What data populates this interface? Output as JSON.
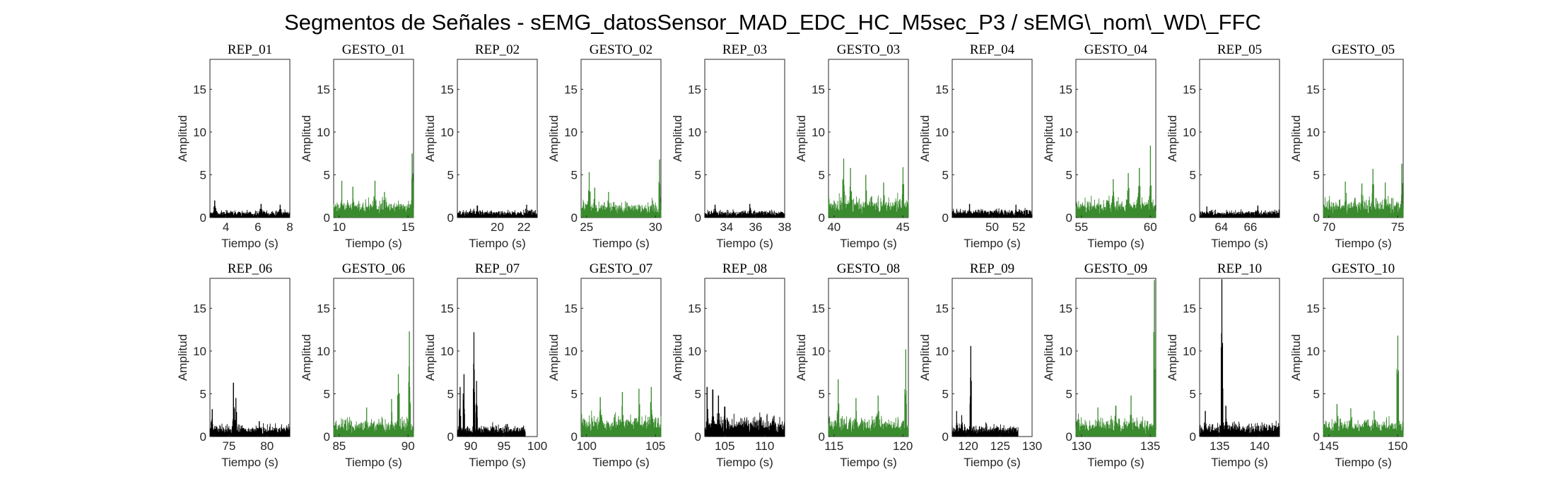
{
  "figure": {
    "title": "Segmentos de Señales - sEMG_datosSensor_MAD_EDC_HC_M5sec_P3 / sEMG\\_nom\\_WD\\_FFC",
    "ylabel": "Amplitud",
    "xlabel": "Tiempo (s)"
  },
  "colors": {
    "rep": "#000000",
    "gesto": "#3a8a2e"
  },
  "chart_data": [
    {
      "type": "line",
      "title": "REP_01",
      "kind": "rep",
      "xlim": [
        3,
        8
      ],
      "ylim": [
        0,
        18.5
      ],
      "xticks": [
        4,
        6,
        8
      ],
      "yticks": [
        0,
        5,
        10,
        15
      ],
      "xlabel": "Tiempo (s)",
      "ylabel": "Amplitud",
      "signal": {
        "base": 0.55,
        "noise": 0.45,
        "spikes": [
          [
            3.3,
            2.0
          ],
          [
            6.2,
            1.6
          ],
          [
            7.4,
            1.5
          ]
        ],
        "tail": 0
      }
    },
    {
      "type": "line",
      "title": "GESTO_01",
      "kind": "gesto",
      "xlim": [
        9.6,
        15.4
      ],
      "ylim": [
        0,
        18.5
      ],
      "xticks": [
        10,
        15
      ],
      "yticks": [
        0,
        5,
        10,
        15
      ],
      "xlabel": "Tiempo (s)",
      "ylabel": "Amplitud",
      "signal": {
        "base": 1.3,
        "noise": 1.4,
        "spikes": [
          [
            10.2,
            4.3
          ],
          [
            11.0,
            3.6
          ],
          [
            12.6,
            4.3
          ],
          [
            13.3,
            3.0
          ],
          [
            15.3,
            7.5
          ]
        ],
        "tail": 0
      }
    },
    {
      "type": "line",
      "title": "REP_02",
      "kind": "rep",
      "xlim": [
        17,
        23
      ],
      "ylim": [
        0,
        18.5
      ],
      "xticks": [
        20,
        22
      ],
      "yticks": [
        0,
        5,
        10,
        15
      ],
      "xlabel": "Tiempo (s)",
      "ylabel": "Amplitud",
      "signal": {
        "base": 0.6,
        "noise": 0.5,
        "spikes": [
          [
            18.5,
            1.4
          ],
          [
            22.2,
            1.5
          ]
        ],
        "tail": 0
      }
    },
    {
      "type": "line",
      "title": "GESTO_02",
      "kind": "gesto",
      "xlim": [
        24.6,
        30.4
      ],
      "ylim": [
        0,
        18.5
      ],
      "xticks": [
        25,
        30
      ],
      "yticks": [
        0,
        5,
        10,
        15
      ],
      "xlabel": "Tiempo (s)",
      "ylabel": "Amplitud",
      "signal": {
        "base": 1.2,
        "noise": 1.2,
        "spikes": [
          [
            25.2,
            5.3
          ],
          [
            25.6,
            3.5
          ],
          [
            26.6,
            3.0
          ],
          [
            30.3,
            6.8
          ]
        ],
        "tail": 0
      }
    },
    {
      "type": "line",
      "title": "REP_03",
      "kind": "rep",
      "xlim": [
        32.5,
        38
      ],
      "ylim": [
        0,
        18.5
      ],
      "xticks": [
        34,
        36,
        38
      ],
      "yticks": [
        0,
        5,
        10,
        15
      ],
      "xlabel": "Tiempo (s)",
      "ylabel": "Amplitud",
      "signal": {
        "base": 0.6,
        "noise": 0.5,
        "spikes": [
          [
            33.2,
            1.5
          ],
          [
            35.6,
            1.6
          ]
        ],
        "tail": 0
      }
    },
    {
      "type": "line",
      "title": "GESTO_03",
      "kind": "gesto",
      "xlim": [
        39.6,
        45.4
      ],
      "ylim": [
        0,
        18.5
      ],
      "xticks": [
        40,
        45
      ],
      "yticks": [
        0,
        5,
        10,
        15
      ],
      "xlabel": "Tiempo (s)",
      "ylabel": "Amplitud",
      "signal": {
        "base": 1.5,
        "noise": 1.6,
        "spikes": [
          [
            40.7,
            6.9
          ],
          [
            41.2,
            5.8
          ],
          [
            42.3,
            5.0
          ],
          [
            43.6,
            4.1
          ],
          [
            45.0,
            5.9
          ]
        ],
        "tail": 0
      }
    },
    {
      "type": "line",
      "title": "REP_04",
      "kind": "rep",
      "xlim": [
        47,
        53
      ],
      "ylim": [
        0,
        18.5
      ],
      "xticks": [
        50,
        52
      ],
      "yticks": [
        0,
        5,
        10,
        15
      ],
      "xlabel": "Tiempo (s)",
      "ylabel": "Amplitud",
      "signal": {
        "base": 0.7,
        "noise": 0.5,
        "spikes": [
          [
            48.3,
            1.6
          ],
          [
            51.8,
            1.5
          ]
        ],
        "tail": 0
      }
    },
    {
      "type": "line",
      "title": "GESTO_04",
      "kind": "gesto",
      "xlim": [
        54.6,
        60.4
      ],
      "ylim": [
        0,
        18.5
      ],
      "xticks": [
        55,
        60
      ],
      "yticks": [
        0,
        5,
        10,
        15
      ],
      "xlabel": "Tiempo (s)",
      "ylabel": "Amplitud",
      "signal": {
        "base": 1.4,
        "noise": 1.6,
        "spikes": [
          [
            57.3,
            4.5
          ],
          [
            58.4,
            5.2
          ],
          [
            59.2,
            5.8
          ],
          [
            60.0,
            8.4
          ]
        ],
        "tail": 0
      }
    },
    {
      "type": "line",
      "title": "REP_05",
      "kind": "rep",
      "xlim": [
        62.5,
        68
      ],
      "ylim": [
        0,
        18.5
      ],
      "xticks": [
        64,
        66
      ],
      "yticks": [
        0,
        5,
        10,
        15
      ],
      "xlabel": "Tiempo (s)",
      "ylabel": "Amplitud",
      "signal": {
        "base": 0.6,
        "noise": 0.5,
        "spikes": [
          [
            63.0,
            1.3
          ],
          [
            66.5,
            1.4
          ]
        ],
        "tail": 0
      }
    },
    {
      "type": "line",
      "title": "GESTO_05",
      "kind": "gesto",
      "xlim": [
        69.6,
        75.4
      ],
      "ylim": [
        0,
        18.5
      ],
      "xticks": [
        70,
        75
      ],
      "yticks": [
        0,
        5,
        10,
        15
      ],
      "xlabel": "Tiempo (s)",
      "ylabel": "Amplitud",
      "signal": {
        "base": 1.3,
        "noise": 1.5,
        "spikes": [
          [
            71.2,
            4.2
          ],
          [
            72.4,
            4.0
          ],
          [
            73.2,
            5.7
          ],
          [
            74.1,
            4.1
          ],
          [
            75.3,
            6.3
          ]
        ],
        "tail": 0
      }
    },
    {
      "type": "line",
      "title": "REP_06",
      "kind": "rep",
      "xlim": [
        72.5,
        83
      ],
      "ylim": [
        0,
        18.5
      ],
      "xticks": [
        75,
        80
      ],
      "yticks": [
        0,
        5,
        10,
        15
      ],
      "xlabel": "Tiempo (s)",
      "ylabel": "Amplitud",
      "signal": {
        "base": 0.9,
        "noise": 0.8,
        "spikes": [
          [
            72.8,
            3.2
          ],
          [
            75.6,
            6.3
          ],
          [
            75.9,
            4.5
          ],
          [
            79.0,
            1.8
          ]
        ],
        "tail": 0
      }
    },
    {
      "type": "line",
      "title": "GESTO_06",
      "kind": "gesto",
      "xlim": [
        84.6,
        90.4
      ],
      "ylim": [
        0,
        18.5
      ],
      "xticks": [
        85,
        90
      ],
      "yticks": [
        0,
        5,
        10,
        15
      ],
      "xlabel": "Tiempo (s)",
      "ylabel": "Amplitud",
      "signal": {
        "base": 1.2,
        "noise": 1.5,
        "spikes": [
          [
            87.0,
            3.4
          ],
          [
            88.8,
            4.4
          ],
          [
            89.3,
            7.3
          ],
          [
            90.1,
            12.3
          ]
        ],
        "tail": 0
      }
    },
    {
      "type": "line",
      "title": "REP_07",
      "kind": "rep",
      "xlim": [
        88,
        100
      ],
      "ylim": [
        0,
        18.5
      ],
      "xticks": [
        90,
        95,
        100
      ],
      "yticks": [
        0,
        5,
        10,
        15
      ],
      "xlabel": "Tiempo (s)",
      "ylabel": "Amplitud",
      "signal": {
        "base": 0.8,
        "noise": 0.9,
        "spikes": [
          [
            88.4,
            5.8
          ],
          [
            89.0,
            7.3
          ],
          [
            90.5,
            12.2
          ],
          [
            90.9,
            6.5
          ]
        ],
        "tail": 98.2
      }
    },
    {
      "type": "line",
      "title": "GESTO_07",
      "kind": "gesto",
      "xlim": [
        99.6,
        105.4
      ],
      "ylim": [
        0,
        18.5
      ],
      "xticks": [
        100,
        105
      ],
      "yticks": [
        0,
        5,
        10,
        15
      ],
      "xlabel": "Tiempo (s)",
      "ylabel": "Amplitud",
      "signal": {
        "base": 1.6,
        "noise": 1.6,
        "spikes": [
          [
            101.0,
            4.6
          ],
          [
            102.6,
            5.2
          ],
          [
            103.8,
            5.6
          ],
          [
            104.7,
            5.8
          ]
        ],
        "tail": 0
      }
    },
    {
      "type": "line",
      "title": "REP_08",
      "kind": "rep",
      "xlim": [
        102.5,
        112.5
      ],
      "ylim": [
        0,
        18.5
      ],
      "xticks": [
        105,
        110
      ],
      "yticks": [
        0,
        5,
        10,
        15
      ],
      "xlabel": "Tiempo (s)",
      "ylabel": "Amplitud",
      "signal": {
        "base": 1.4,
        "noise": 1.6,
        "spikes": [
          [
            102.8,
            5.8
          ],
          [
            103.5,
            5.5
          ],
          [
            104.2,
            4.8
          ],
          [
            105.0,
            3.5
          ]
        ],
        "tail": 0
      }
    },
    {
      "type": "line",
      "title": "GESTO_08",
      "kind": "gesto",
      "xlim": [
        114.6,
        120.4
      ],
      "ylim": [
        0,
        18.5
      ],
      "xticks": [
        115,
        120
      ],
      "yticks": [
        0,
        5,
        10,
        15
      ],
      "xlabel": "Tiempo (s)",
      "ylabel": "Amplitud",
      "signal": {
        "base": 1.4,
        "noise": 1.6,
        "spikes": [
          [
            115.3,
            6.7
          ],
          [
            116.6,
            4.5
          ],
          [
            118.2,
            4.8
          ],
          [
            120.2,
            10.2
          ]
        ],
        "tail": 0
      }
    },
    {
      "type": "line",
      "title": "REP_09",
      "kind": "rep",
      "xlim": [
        117.5,
        130
      ],
      "ylim": [
        0,
        18.5
      ],
      "xticks": [
        120,
        125,
        130
      ],
      "yticks": [
        0,
        5,
        10,
        15
      ],
      "xlabel": "Tiempo (s)",
      "ylabel": "Amplitud",
      "signal": {
        "base": 0.8,
        "noise": 0.9,
        "spikes": [
          [
            118.2,
            3.0
          ],
          [
            119.0,
            2.5
          ],
          [
            120.4,
            10.6
          ]
        ],
        "tail": 127.8
      }
    },
    {
      "type": "line",
      "title": "GESTO_09",
      "kind": "gesto",
      "xlim": [
        129.6,
        135.4
      ],
      "ylim": [
        0,
        18.5
      ],
      "xticks": [
        130,
        135
      ],
      "yticks": [
        0,
        5,
        10,
        15
      ],
      "xlabel": "Tiempo (s)",
      "ylabel": "Amplitud",
      "signal": {
        "base": 1.3,
        "noise": 1.4,
        "spikes": [
          [
            131.2,
            3.4
          ],
          [
            132.5,
            3.6
          ],
          [
            133.6,
            4.8
          ],
          [
            135.3,
            18.3
          ]
        ],
        "tail": 0
      }
    },
    {
      "type": "line",
      "title": "REP_10",
      "kind": "rep",
      "xlim": [
        132.5,
        142.5
      ],
      "ylim": [
        0,
        18.5
      ],
      "xticks": [
        135,
        140
      ],
      "yticks": [
        0,
        5,
        10,
        15
      ],
      "xlabel": "Tiempo (s)",
      "ylabel": "Amplitud",
      "signal": {
        "base": 1.0,
        "noise": 1.2,
        "spikes": [
          [
            133.2,
            3.0
          ],
          [
            135.3,
            18.4
          ],
          [
            135.8,
            3.6
          ]
        ],
        "tail": 0
      }
    },
    {
      "type": "line",
      "title": "GESTO_10",
      "kind": "gesto",
      "xlim": [
        144.6,
        150.4
      ],
      "ylim": [
        0,
        18.5
      ],
      "xticks": [
        145,
        150
      ],
      "yticks": [
        0,
        5,
        10,
        15
      ],
      "xlabel": "Tiempo (s)",
      "ylabel": "Amplitud",
      "signal": {
        "base": 1.3,
        "noise": 1.3,
        "spikes": [
          [
            145.6,
            3.8
          ],
          [
            146.6,
            3.3
          ],
          [
            148.3,
            3.0
          ],
          [
            150.0,
            11.8
          ]
        ],
        "tail": 0
      }
    }
  ]
}
